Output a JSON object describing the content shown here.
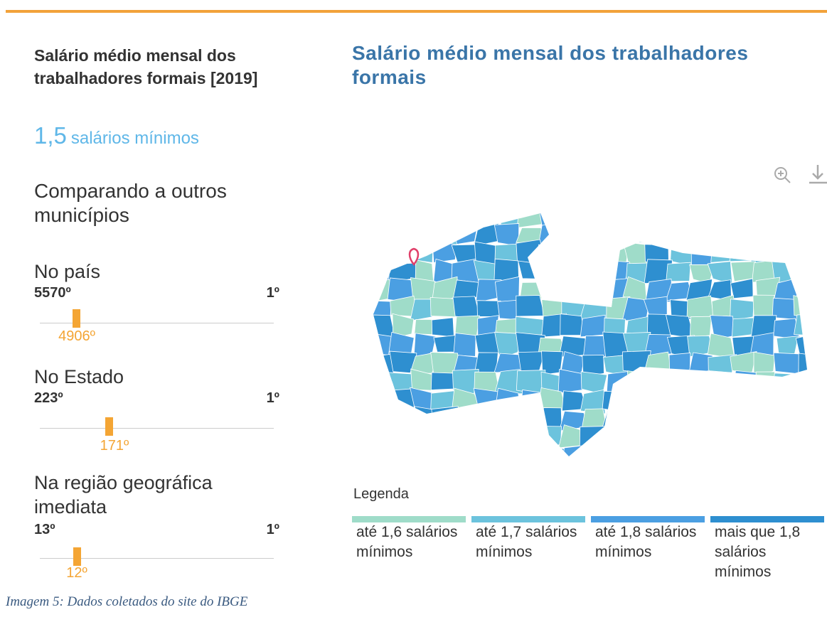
{
  "summary": {
    "title": "Salário médio mensal dos trabalhadores formais [2019]",
    "value": "1,5",
    "unit": "salários mínimos"
  },
  "comparison": {
    "title": "Comparando a outros municípios",
    "rankings": [
      {
        "label": "No país",
        "low": "5570º",
        "high": "1º",
        "position": "4906º"
      },
      {
        "label": "No Estado",
        "low": "223º",
        "high": "1º",
        "position": "171º"
      },
      {
        "label": "Na região geográfica imediata",
        "low": "13º",
        "high": "1º",
        "position": "12º"
      }
    ]
  },
  "map": {
    "title": "Salário médio mensal dos trabalhadores formais",
    "legend": {
      "title": "Legenda",
      "items": [
        {
          "label": "até 1,6 salários mínimos",
          "color": "#9fdcc9"
        },
        {
          "label": "até 1,7 salários mínimos",
          "color": "#6cc3dd"
        },
        {
          "label": "até 1,8 salários mínimos",
          "color": "#4b9fe2"
        },
        {
          "label": "mais que 1,8 salários mínimos",
          "color": "#2e8fd0"
        }
      ]
    }
  },
  "caption": "Imagem 5: Dados coletados do site do IBGE"
}
